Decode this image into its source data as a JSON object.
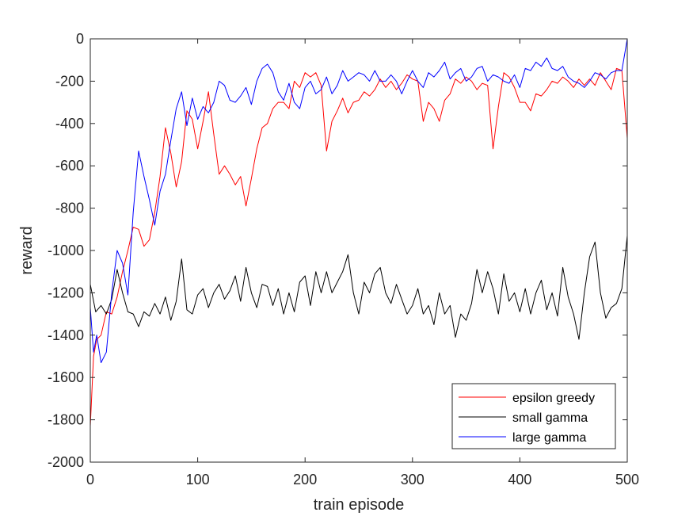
{
  "chart_data": {
    "type": "line",
    "title": "",
    "xlabel": "train episode",
    "ylabel": "reward",
    "xlim": [
      0,
      500
    ],
    "ylim": [
      -2000,
      0
    ],
    "xticks": [
      0,
      100,
      200,
      300,
      400,
      500
    ],
    "yticks": [
      0,
      -200,
      -400,
      -600,
      -800,
      -1000,
      -1200,
      -1400,
      -1600,
      -1800,
      -2000
    ],
    "grid": false,
    "legend_position": "bottom-right",
    "series": [
      {
        "name": "epsilon greedy",
        "color": "#ff0000",
        "x": [
          0,
          3,
          6,
          10,
          15,
          20,
          25,
          30,
          35,
          40,
          45,
          50,
          55,
          60,
          65,
          70,
          75,
          80,
          85,
          90,
          95,
          100,
          105,
          110,
          115,
          120,
          125,
          130,
          135,
          140,
          145,
          150,
          155,
          160,
          165,
          170,
          175,
          180,
          185,
          190,
          195,
          200,
          205,
          210,
          215,
          220,
          225,
          230,
          235,
          240,
          245,
          250,
          255,
          260,
          265,
          270,
          275,
          280,
          285,
          290,
          295,
          300,
          305,
          310,
          315,
          320,
          325,
          330,
          335,
          340,
          345,
          350,
          355,
          360,
          365,
          370,
          375,
          380,
          385,
          390,
          395,
          400,
          405,
          410,
          415,
          420,
          425,
          430,
          435,
          440,
          445,
          450,
          455,
          460,
          465,
          470,
          475,
          480,
          485,
          490,
          495,
          500
        ],
        "y": [
          -1830,
          -1500,
          -1420,
          -1400,
          -1290,
          -1300,
          -1220,
          -1100,
          -1000,
          -890,
          -900,
          -980,
          -950,
          -820,
          -650,
          -420,
          -540,
          -700,
          -580,
          -340,
          -380,
          -520,
          -390,
          -250,
          -450,
          -640,
          -600,
          -640,
          -690,
          -650,
          -790,
          -660,
          -520,
          -420,
          -400,
          -330,
          -300,
          -300,
          -330,
          -200,
          -230,
          -160,
          -180,
          -160,
          -220,
          -530,
          -390,
          -340,
          -280,
          -350,
          -300,
          -290,
          -250,
          -270,
          -240,
          -190,
          -230,
          -200,
          -240,
          -210,
          -170,
          -190,
          -200,
          -390,
          -300,
          -330,
          -390,
          -290,
          -260,
          -190,
          -210,
          -180,
          -200,
          -240,
          -210,
          -220,
          -520,
          -320,
          -160,
          -180,
          -230,
          -300,
          -300,
          -340,
          -260,
          -270,
          -240,
          -200,
          -210,
          -180,
          -200,
          -230,
          -190,
          -220,
          -190,
          -220,
          -160,
          -200,
          -240,
          -140,
          -150,
          -470
        ]
      },
      {
        "name": "small gamma",
        "color": "#000000",
        "x": [
          0,
          5,
          10,
          15,
          20,
          25,
          30,
          35,
          40,
          45,
          50,
          55,
          60,
          65,
          70,
          75,
          80,
          85,
          90,
          95,
          100,
          105,
          110,
          115,
          120,
          125,
          130,
          135,
          140,
          145,
          150,
          155,
          160,
          165,
          170,
          175,
          180,
          185,
          190,
          195,
          200,
          205,
          210,
          215,
          220,
          225,
          230,
          235,
          240,
          245,
          250,
          255,
          260,
          265,
          270,
          275,
          280,
          285,
          290,
          295,
          300,
          305,
          310,
          315,
          320,
          325,
          330,
          335,
          340,
          345,
          350,
          355,
          360,
          365,
          370,
          375,
          380,
          385,
          390,
          395,
          400,
          405,
          410,
          415,
          420,
          425,
          430,
          435,
          440,
          445,
          450,
          455,
          460,
          465,
          470,
          475,
          480,
          485,
          490,
          495,
          500
        ],
        "y": [
          -1160,
          -1290,
          -1260,
          -1300,
          -1230,
          -1090,
          -1200,
          -1290,
          -1300,
          -1360,
          -1290,
          -1310,
          -1250,
          -1300,
          -1220,
          -1330,
          -1240,
          -1040,
          -1280,
          -1300,
          -1210,
          -1180,
          -1270,
          -1200,
          -1160,
          -1230,
          -1190,
          -1120,
          -1240,
          -1080,
          -1200,
          -1270,
          -1160,
          -1170,
          -1260,
          -1180,
          -1300,
          -1200,
          -1290,
          -1150,
          -1120,
          -1260,
          -1100,
          -1200,
          -1100,
          -1200,
          -1150,
          -1100,
          -1020,
          -1200,
          -1300,
          -1150,
          -1200,
          -1110,
          -1080,
          -1200,
          -1250,
          -1160,
          -1230,
          -1300,
          -1260,
          -1180,
          -1300,
          -1260,
          -1350,
          -1200,
          -1300,
          -1260,
          -1410,
          -1300,
          -1330,
          -1250,
          -1090,
          -1200,
          -1100,
          -1180,
          -1300,
          -1110,
          -1240,
          -1200,
          -1290,
          -1180,
          -1300,
          -1200,
          -1140,
          -1280,
          -1200,
          -1310,
          -1080,
          -1220,
          -1300,
          -1420,
          -1200,
          -1030,
          -960,
          -1200,
          -1320,
          -1270,
          -1250,
          -1180,
          -930
        ]
      },
      {
        "name": "large gamma",
        "color": "#0000ff",
        "x": [
          0,
          3,
          6,
          10,
          15,
          20,
          25,
          30,
          35,
          40,
          45,
          50,
          55,
          60,
          65,
          70,
          75,
          80,
          85,
          90,
          95,
          100,
          105,
          110,
          115,
          120,
          125,
          130,
          135,
          140,
          145,
          150,
          155,
          160,
          165,
          170,
          175,
          180,
          185,
          190,
          195,
          200,
          205,
          210,
          215,
          220,
          225,
          230,
          235,
          240,
          245,
          250,
          255,
          260,
          265,
          270,
          275,
          280,
          285,
          290,
          295,
          300,
          305,
          310,
          315,
          320,
          325,
          330,
          335,
          340,
          345,
          350,
          355,
          360,
          365,
          370,
          375,
          380,
          385,
          390,
          395,
          400,
          405,
          410,
          415,
          420,
          425,
          430,
          435,
          440,
          445,
          450,
          455,
          460,
          465,
          470,
          475,
          480,
          485,
          490,
          495,
          500
        ],
        "y": [
          -1270,
          -1480,
          -1400,
          -1530,
          -1480,
          -1200,
          -1000,
          -1060,
          -1210,
          -820,
          -530,
          -650,
          -760,
          -880,
          -720,
          -640,
          -480,
          -330,
          -250,
          -410,
          -280,
          -380,
          -320,
          -350,
          -300,
          -200,
          -220,
          -290,
          -300,
          -270,
          -230,
          -310,
          -200,
          -140,
          -120,
          -160,
          -250,
          -290,
          -210,
          -300,
          -330,
          -230,
          -200,
          -260,
          -240,
          -180,
          -260,
          -220,
          -150,
          -200,
          -180,
          -160,
          -170,
          -200,
          -150,
          -200,
          -200,
          -170,
          -200,
          -260,
          -200,
          -150,
          -200,
          -230,
          -160,
          -180,
          -150,
          -110,
          -190,
          -160,
          -140,
          -200,
          -180,
          -140,
          -130,
          -200,
          -170,
          -180,
          -200,
          -210,
          -170,
          -230,
          -140,
          -150,
          -110,
          -130,
          -90,
          -140,
          -150,
          -130,
          -180,
          -200,
          -210,
          -230,
          -200,
          -160,
          -170,
          -190,
          -160,
          -150,
          -150,
          0
        ]
      }
    ]
  }
}
